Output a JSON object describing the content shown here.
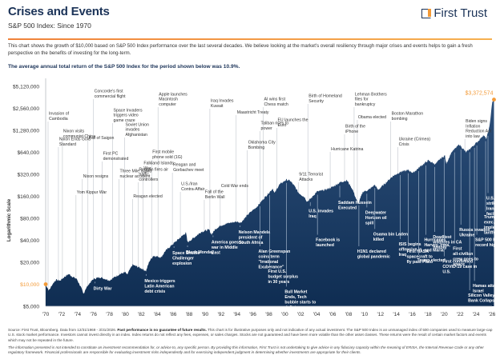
{
  "header": {
    "title": "Crises and Events",
    "subtitle": "S&P 500 Index: Since 1970",
    "logo_text": "First Trust",
    "intro": "This chart shows the growth of $10,000 based on S&P 500 Index performance over the last several decades. We believe looking at the market's overall resiliency through major crises and events helps to gain a fresh perspective on the benefits of investing for the long-term.",
    "average_return": "The average annual total return of the S&P 500 Index for the period shown below was 10.9%."
  },
  "colors": {
    "area": "#0f2d52",
    "accent": "#f39a37",
    "event_line": "#c9cdd3",
    "title": "#1b3358"
  },
  "chart_data": {
    "type": "area",
    "title": "Growth of $10,000 in the S&P 500 Index",
    "xlabel": "",
    "ylabel": "Logarithmic Scale",
    "yscale": "log2",
    "ylim": [
      5000,
      5120000
    ],
    "xlim": [
      1970,
      2026
    ],
    "y_ticks": [
      {
        "value": 5120000,
        "label": "$5,120,000"
      },
      {
        "value": 2560000,
        "label": "$2,560,000"
      },
      {
        "value": 1280000,
        "label": "$1,280,000"
      },
      {
        "value": 640000,
        "label": "$640,000"
      },
      {
        "value": 320000,
        "label": "$320,000"
      },
      {
        "value": 160000,
        "label": "$160,000"
      },
      {
        "value": 80000,
        "label": "$80,000"
      },
      {
        "value": 40000,
        "label": "$40,000"
      },
      {
        "value": 20000,
        "label": "$20,000"
      },
      {
        "value": 10000,
        "label": "$10,000",
        "highlight": true
      },
      {
        "value": 5000,
        "label": "$5,000"
      }
    ],
    "x_ticks": [
      "'70",
      "'72",
      "'74",
      "'76",
      "'78",
      "'80",
      "'82",
      "'84",
      "'86",
      "'88",
      "'90",
      "'92",
      "'94",
      "'96",
      "'98",
      "'00",
      "'02",
      "'04",
      "'06",
      "'08",
      "'10",
      "'12",
      "'14",
      "'16",
      "'18",
      "'20",
      "'22",
      "'24",
      "'26"
    ],
    "start": {
      "year": 1970.0,
      "value": 10000,
      "label": "$10,000"
    },
    "end": {
      "year": 2026.25,
      "value": 3372574,
      "label": "$3,372,574"
    },
    "series": [
      {
        "name": "Growth of $10,000",
        "points": [
          [
            1970.0,
            10000
          ],
          [
            1970.4,
            8200
          ],
          [
            1970.9,
            10200
          ],
          [
            1971.3,
            11500
          ],
          [
            1971.8,
            11200
          ],
          [
            1972.3,
            12500
          ],
          [
            1972.9,
            13800
          ],
          [
            1973.4,
            12600
          ],
          [
            1973.9,
            11800
          ],
          [
            1974.4,
            9200
          ],
          [
            1974.75,
            7300
          ],
          [
            1975.0,
            8600
          ],
          [
            1975.5,
            10300
          ],
          [
            1976.0,
            11800
          ],
          [
            1976.8,
            12500
          ],
          [
            1977.4,
            11900
          ],
          [
            1978.0,
            11300
          ],
          [
            1978.7,
            12600
          ],
          [
            1979.3,
            13800
          ],
          [
            1980.0,
            14600
          ],
          [
            1980.2,
            13400
          ],
          [
            1980.9,
            18500
          ],
          [
            1981.5,
            17400
          ],
          [
            1982.0,
            16500
          ],
          [
            1982.6,
            15200
          ],
          [
            1983.0,
            20500
          ],
          [
            1983.5,
            24500
          ],
          [
            1984.0,
            24000
          ],
          [
            1984.5,
            23400
          ],
          [
            1985.0,
            28500
          ],
          [
            1985.9,
            35000
          ],
          [
            1986.5,
            40000
          ],
          [
            1987.6,
            51000
          ],
          [
            1987.8,
            37500
          ],
          [
            1988.5,
            42500
          ],
          [
            1989.5,
            52000
          ],
          [
            1990.5,
            56000
          ],
          [
            1990.8,
            48000
          ],
          [
            1991.3,
            57000
          ],
          [
            1992.0,
            64000
          ],
          [
            1993.0,
            69000
          ],
          [
            1994.0,
            72000
          ],
          [
            1994.5,
            70000
          ],
          [
            1995.5,
            93000
          ],
          [
            1996.5,
            115000
          ],
          [
            1997.5,
            155000
          ],
          [
            1998.5,
            205000
          ],
          [
            1998.7,
            175000
          ],
          [
            1999.3,
            230000
          ],
          [
            2000.2,
            270000
          ],
          [
            2000.7,
            260000
          ],
          [
            2001.3,
            215000
          ],
          [
            2001.7,
            180000
          ],
          [
            2002.5,
            155000
          ],
          [
            2002.8,
            135000
          ],
          [
            2003.3,
            150000
          ],
          [
            2004.0,
            185000
          ],
          [
            2005.0,
            195000
          ],
          [
            2006.0,
            215000
          ],
          [
            2007.0,
            250000
          ],
          [
            2007.8,
            265000
          ],
          [
            2008.5,
            200000
          ],
          [
            2009.2,
            125000
          ],
          [
            2009.8,
            185000
          ],
          [
            2010.5,
            195000
          ],
          [
            2011.3,
            230000
          ],
          [
            2011.7,
            195000
          ],
          [
            2012.5,
            235000
          ],
          [
            2013.5,
            300000
          ],
          [
            2014.5,
            345000
          ],
          [
            2015.5,
            365000
          ],
          [
            2016.1,
            335000
          ],
          [
            2017.0,
            410000
          ],
          [
            2018.0,
            495000
          ],
          [
            2018.9,
            440000
          ],
          [
            2019.5,
            520000
          ],
          [
            2020.1,
            580000
          ],
          [
            2020.25,
            440000
          ],
          [
            2020.9,
            640000
          ],
          [
            2021.9,
            820000
          ],
          [
            2022.75,
            640000
          ],
          [
            2023.5,
            760000
          ],
          [
            2024.3,
            920000
          ],
          [
            2024.9,
            1100000
          ],
          [
            2025.3,
            980000
          ],
          [
            2025.7,
            1450000
          ],
          [
            2026.0,
            3000000
          ],
          [
            2026.25,
            3372574
          ]
        ]
      }
    ],
    "annotations": [
      {
        "year": 1970.3,
        "text": "Invasion of Cambodia",
        "pos": "above"
      },
      {
        "year": 1971.6,
        "text": "Nixon Ends Gold Standard",
        "pos": "above"
      },
      {
        "year": 1972.1,
        "text": "Nixon visits communist China",
        "pos": "above"
      },
      {
        "year": 1973.8,
        "text": "Yom Kippur War",
        "pos": "above"
      },
      {
        "year": 1974.6,
        "text": "Nixon resigns",
        "pos": "above"
      },
      {
        "year": 1975.3,
        "text": "Fall of Saigon",
        "pos": "above"
      },
      {
        "year": 1976.2,
        "text": "Dirty War",
        "pos": "below"
      },
      {
        "year": 1976.0,
        "text": "Concorde's first commercial flight",
        "pos": "above"
      },
      {
        "year": 1977.1,
        "text": "First PC demonstrated",
        "pos": "above"
      },
      {
        "year": 1978.4,
        "text": "Space Invaders triggers video game craze",
        "pos": "above"
      },
      {
        "year": 1979.2,
        "text": "Three Mile Island nuclear accident",
        "pos": "above"
      },
      {
        "year": 1979.9,
        "text": "Soviet Union invades Afghanistan",
        "pos": "above"
      },
      {
        "year": 1980.9,
        "text": "Reagan elected",
        "pos": "above"
      },
      {
        "year": 1981.6,
        "text": "Reagan fires air traffic controllers",
        "pos": "above"
      },
      {
        "year": 1982.2,
        "text": "Falkland Islands War",
        "pos": "above"
      },
      {
        "year": 1982.6,
        "text": "Mexico triggers Latin American debt crisis",
        "pos": "below"
      },
      {
        "year": 1983.3,
        "text": "First mobile phone sold (1G)",
        "pos": "above"
      },
      {
        "year": 1984.1,
        "text": "Apple launches Macintosh computer",
        "pos": "above"
      },
      {
        "year": 1985.9,
        "text": "Reagan and Gorbachev meet",
        "pos": "above"
      },
      {
        "year": 1986.1,
        "text": "Space Shuttle Challenger explosion",
        "pos": "below"
      },
      {
        "year": 1986.9,
        "text": "U.S./Iran Contra-Affair",
        "pos": "above"
      },
      {
        "year": 1987.8,
        "text": "Black Monday",
        "pos": "below"
      },
      {
        "year": 1989.9,
        "text": "Fall of the Berlin Wall",
        "pos": "above"
      },
      {
        "year": 1990.6,
        "text": "Iraq Invades Kuwait",
        "pos": "above"
      },
      {
        "year": 1991.0,
        "text": "America goes to war in Middle East",
        "pos": "below"
      },
      {
        "year": 1991.9,
        "text": "Cold War ends",
        "pos": "above"
      },
      {
        "year": 1993.9,
        "text": "Maastricht Treaty",
        "pos": "above"
      },
      {
        "year": 1994.4,
        "text": "Nelson Mandela president of South Africa",
        "pos": "below"
      },
      {
        "year": 1995.3,
        "text": "Oklahoma City Bombing",
        "pos": "above"
      },
      {
        "year": 1996.9,
        "text": "Taliban rises to power",
        "pos": "above"
      },
      {
        "year": 1996.9,
        "text": "Alan Greenspan coins term \"Irrational Exuberance\"",
        "pos": "below"
      },
      {
        "year": 1997.3,
        "text": "AI wins first Chess match",
        "pos": "above"
      },
      {
        "year": 1998.1,
        "text": "First U.S. budget surplus in 30 years",
        "pos": "below"
      },
      {
        "year": 1999.0,
        "text": "EU launches the Euro",
        "pos": "above"
      },
      {
        "year": 2000.2,
        "text": "Bull Market Ends, Tech bubble starts to deflate",
        "pos": "below"
      },
      {
        "year": 2001.7,
        "text": "9/11 Terrorist Attacks",
        "pos": "above"
      },
      {
        "year": 2002.9,
        "text": "Birth of Homeland Security",
        "pos": "above"
      },
      {
        "year": 2003.2,
        "text": "U.S. invades Iraq",
        "pos": "below"
      },
      {
        "year": 2004.1,
        "text": "Facebook is launched",
        "pos": "below"
      },
      {
        "year": 2005.7,
        "text": "Hurricane Katrina",
        "pos": "above"
      },
      {
        "year": 2006.9,
        "text": "Saddam Hussein Executed",
        "pos": "below"
      },
      {
        "year": 2007.5,
        "text": "Birth of the iPhone",
        "pos": "above"
      },
      {
        "year": 2008.7,
        "text": "Lehman Brothers files for bankruptcy",
        "pos": "above"
      },
      {
        "year": 2009.1,
        "text": "Obama elected",
        "pos": "above"
      },
      {
        "year": 2009.3,
        "text": "H1N1 declared global pandemic",
        "pos": "below"
      },
      {
        "year": 2010.3,
        "text": "Deepwater Horizon oil spill",
        "pos": "below"
      },
      {
        "year": 2011.3,
        "text": "Osama bin Laden killed",
        "pos": "below"
      },
      {
        "year": 2013.3,
        "text": "Boston Marathon bombing",
        "pos": "above"
      },
      {
        "year": 2014.2,
        "text": "Ukraine (Crimea) Crisis",
        "pos": "above"
      },
      {
        "year": 2014.5,
        "text": "ISIS begins offensive in Iraq",
        "pos": "below"
      },
      {
        "year": 2015.5,
        "text": "First NASA spacecraft to fly past Pluto",
        "pos": "below"
      },
      {
        "year": 2016.8,
        "text": "Trump elected",
        "pos": "below"
      },
      {
        "year": 2017.7,
        "text": "Hurricanes Harvey, Irma, and Maria",
        "pos": "below"
      },
      {
        "year": 2018.8,
        "text": "Deadliest wildfires in CA history",
        "pos": "below"
      },
      {
        "year": 2020.0,
        "text": "First confirmed COVID-19 case in U.S.",
        "pos": "below"
      },
      {
        "year": 2021.3,
        "text": "First all-civilian crew goes to space",
        "pos": "below"
      },
      {
        "year": 2022.1,
        "text": "Russia invades Ukraine",
        "pos": "below"
      },
      {
        "year": 2022.6,
        "text": "Biden signs Inflation Reduction Act into law",
        "pos": "above"
      },
      {
        "year": 2023.2,
        "text": "Silicon Valley Bank Collapse",
        "pos": "below"
      },
      {
        "year": 2023.8,
        "text": "Hamas attacks Israel",
        "pos": "below"
      },
      {
        "year": 2024.1,
        "text": "S&P 500 hits record high",
        "pos": "below"
      },
      {
        "year": 2025.2,
        "text": "Trump signs exec. order to implement tariffs",
        "pos": "below"
      },
      {
        "year": 2025.5,
        "text": "U.S. launches strike on Iranian nuclear facility",
        "pos": "below"
      }
    ],
    "grid": false,
    "legend": "none"
  },
  "footer": {
    "source_prefix": "Source: First Trust, Bloomberg. Data from 12/31/1969 - 3/31/2026. ",
    "source_bold": "Past performance is no guarantee of future results.",
    "source_rest": " This chart is for illustrative purposes only and not indicative of any actual investment. The S&P 500 Index is an unmanaged index of 500 companies used to measure large-cap U.S. stock market performance. Investors cannot invest directly in an index. Index returns do not reflect any fees, expenses, or sales charges. Stocks are not guaranteed and have been more volatile than the other asset classes. These returns were the result of certain market factors and events which may not be repeated in the future.",
    "disclaimer": "The information presented is not intended to constitute an investment recommendation for, or advice to, any specific person. By providing this information, First Trust is not undertaking to give advice in any fiduciary capacity within the meaning of ERISA, the Internal Revenue Code or any other regulatory framework. Financial professionals are responsible for evaluating investment risks independently and for exercising independent judgment in determining whether investments are appropriate for their clients."
  }
}
